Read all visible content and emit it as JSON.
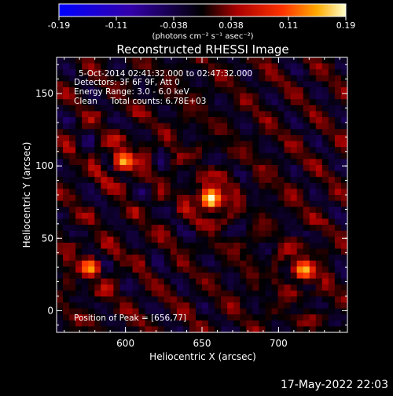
{
  "colorbar": {
    "ticks": [
      "-0.19",
      "-0.11",
      "-0.038",
      "0.038",
      "0.11",
      "0.19"
    ],
    "unit_label": "(photons cm⁻² s⁻¹ asec⁻²)",
    "range": [
      -0.19,
      0.19
    ]
  },
  "chart_data": {
    "type": "heatmap",
    "title": "Reconstructed RHESSI Image",
    "xlabel": "Heliocentric X (arcsec)",
    "ylabel": "Heliocentric Y (arcsec)",
    "xlim": [
      555,
      745
    ],
    "ylim": [
      -15,
      175
    ],
    "x_ticks": [
      600,
      650,
      700
    ],
    "y_ticks": [
      0,
      50,
      100,
      150
    ],
    "annotations": [
      "5-Oct-2014 02:41:32.000 to 02:47:32.000",
      "Detectors: 3F 6F 9F, Att 0",
      "Energy Range: 3.0 - 6.0 keV",
      "Clean     Total counts: 6.78E+03"
    ],
    "peak_label": "Position of Peak = [656,77]",
    "sources": [
      {
        "x": 656,
        "y": 77,
        "value": 0.19
      },
      {
        "x": 598,
        "y": 103,
        "value": 0.13
      },
      {
        "x": 716,
        "y": 28,
        "value": 0.12
      },
      {
        "x": 577,
        "y": 30,
        "value": 0.09
      }
    ]
  },
  "timestamp": "17-May-2022 22:03"
}
